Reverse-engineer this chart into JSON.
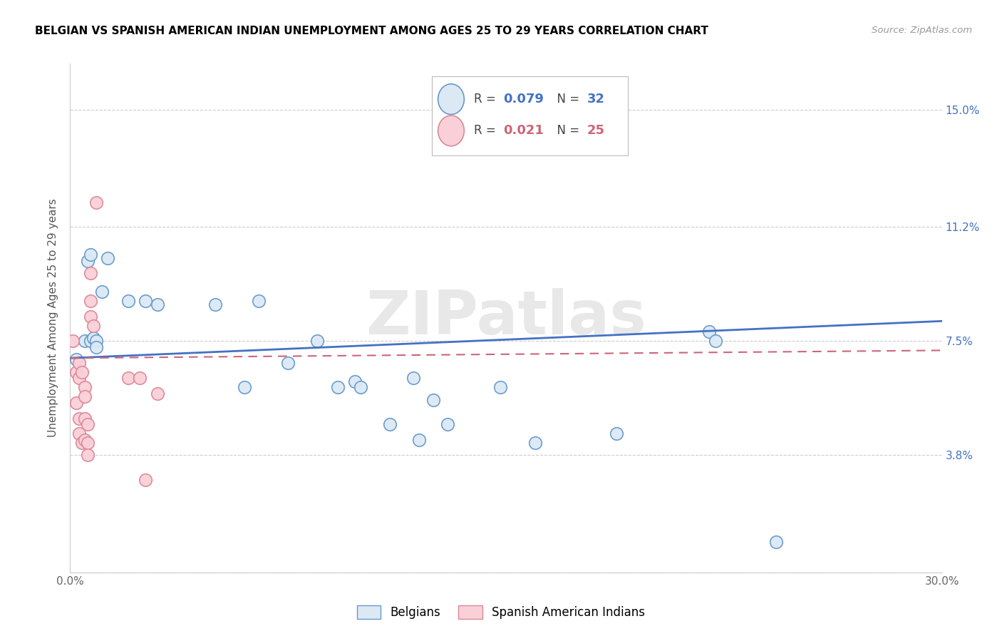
{
  "title": "BELGIAN VS SPANISH AMERICAN INDIAN UNEMPLOYMENT AMONG AGES 25 TO 29 YEARS CORRELATION CHART",
  "source": "Source: ZipAtlas.com",
  "ylabel": "Unemployment Among Ages 25 to 29 years",
  "xlim": [
    0.0,
    0.3
  ],
  "ylim": [
    0.0,
    0.165
  ],
  "xticks": [
    0.0,
    0.05,
    0.1,
    0.15,
    0.2,
    0.25,
    0.3
  ],
  "xticklabels": [
    "0.0%",
    "",
    "",
    "",
    "",
    "",
    "30.0%"
  ],
  "ytick_positions": [
    0.0,
    0.038,
    0.075,
    0.112,
    0.15
  ],
  "yticklabels_right": [
    "",
    "3.8%",
    "7.5%",
    "11.2%",
    "15.0%"
  ],
  "blue_fill": "#dce9f5",
  "blue_edge": "#6699cc",
  "pink_fill": "#f9d0d8",
  "pink_edge": "#dd8899",
  "line_blue_color": "#4472c4",
  "line_pink_color": "#cc6677",
  "watermark": "ZIPatlas",
  "belgians_x": [
    0.002,
    0.005,
    0.006,
    0.007,
    0.007,
    0.008,
    0.009,
    0.009,
    0.011,
    0.013,
    0.02,
    0.026,
    0.03,
    0.05,
    0.06,
    0.065,
    0.075,
    0.085,
    0.092,
    0.098,
    0.1,
    0.11,
    0.118,
    0.12,
    0.125,
    0.13,
    0.148,
    0.16,
    0.188,
    0.22,
    0.222,
    0.243
  ],
  "belgians_y": [
    0.069,
    0.075,
    0.101,
    0.103,
    0.075,
    0.076,
    0.075,
    0.073,
    0.091,
    0.102,
    0.088,
    0.088,
    0.087,
    0.087,
    0.06,
    0.088,
    0.068,
    0.075,
    0.06,
    0.062,
    0.06,
    0.048,
    0.063,
    0.043,
    0.056,
    0.048,
    0.06,
    0.042,
    0.045,
    0.078,
    0.075,
    0.01
  ],
  "spanish_x": [
    0.001,
    0.002,
    0.002,
    0.003,
    0.003,
    0.003,
    0.003,
    0.004,
    0.004,
    0.005,
    0.005,
    0.005,
    0.005,
    0.006,
    0.006,
    0.006,
    0.007,
    0.007,
    0.007,
    0.008,
    0.009,
    0.02,
    0.024,
    0.026,
    0.03
  ],
  "spanish_y": [
    0.075,
    0.065,
    0.055,
    0.068,
    0.063,
    0.05,
    0.045,
    0.065,
    0.042,
    0.06,
    0.057,
    0.05,
    0.043,
    0.048,
    0.042,
    0.038,
    0.097,
    0.088,
    0.083,
    0.08,
    0.12,
    0.063,
    0.063,
    0.03,
    0.058
  ],
  "belgian_tline_x": [
    0.0,
    0.3
  ],
  "belgian_tline_y": [
    0.0695,
    0.0815
  ],
  "spanish_tline_x": [
    0.0,
    0.3
  ],
  "spanish_tline_y": [
    0.0695,
    0.072
  ]
}
